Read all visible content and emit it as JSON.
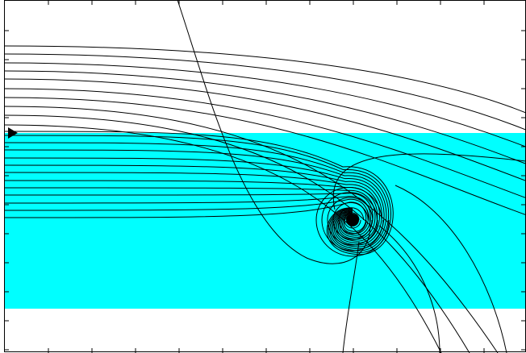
{
  "figure": {
    "description_free": true,
    "colors": {
      "background": "#ffffff",
      "band": "#00ffff",
      "curves": "#000000",
      "frame": "#000000",
      "marker": "#000000"
    },
    "icons": {
      "arrow": "triangle-right-icon",
      "sink": "filled-circle-icon"
    }
  }
}
